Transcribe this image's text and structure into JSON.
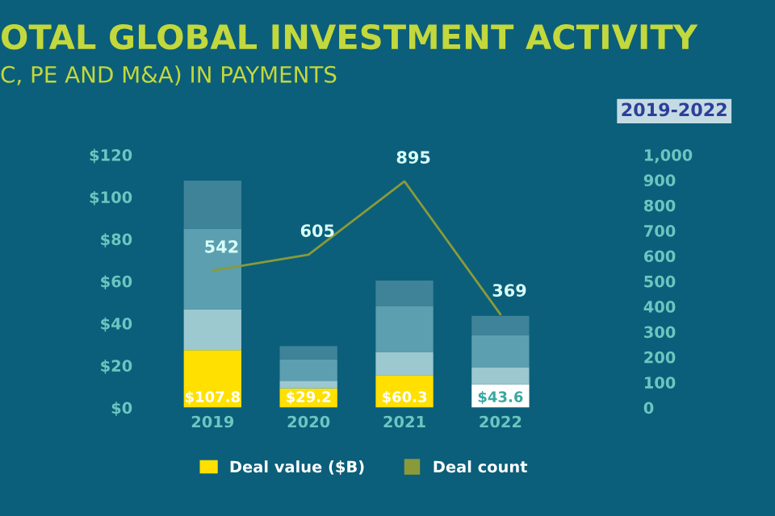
{
  "chart_data": {
    "type": "bar",
    "title": "OTAL GLOBAL INVESTMENT ACTIVITY",
    "subtitle": "C, PE AND M&A) IN PAYMENTS",
    "annotations": [
      "2019-2022"
    ],
    "categories": [
      "2019",
      "2020",
      "2021",
      "2022"
    ],
    "stacked": true,
    "series": [
      {
        "name": "Deal value ($B)",
        "colors": [
          "#ffe000",
          "#ffe000",
          "#ffe000",
          "#ffffff"
        ],
        "values": [
          27.3,
          9.1,
          15.4,
          11.0
        ]
      },
      {
        "color": "#9cc8d0",
        "values": [
          19.4,
          3.7,
          11.0,
          8.0
        ]
      },
      {
        "color": "#5c9fb1",
        "values": [
          38.3,
          10.1,
          21.7,
          15.5
        ]
      },
      {
        "color": "#3f8398",
        "values": [
          22.8,
          6.3,
          12.2,
          9.1
        ]
      },
      {
        "name": "Deal count",
        "type": "line",
        "axis": "y2",
        "color": "#8a9a3a",
        "values": [
          542,
          605,
          895,
          369
        ],
        "data_labels": true
      }
    ],
    "ylim": [
      0,
      120
    ],
    "yticks": [
      {
        "value": 0,
        "label": "$0"
      },
      {
        "value": 20,
        "label": "$20"
      },
      {
        "value": 40,
        "label": "$40"
      },
      {
        "value": 60,
        "label": "$60"
      },
      {
        "value": 80,
        "label": "$80"
      },
      {
        "value": 100,
        "label": "$100"
      },
      {
        "value": 120,
        "label": "$120"
      }
    ],
    "y2lim": [
      0,
      1000
    ],
    "y2ticks": [
      0,
      100,
      200,
      300,
      400,
      500,
      600,
      700,
      800,
      900,
      {
        "value": 1000,
        "label": "1,000"
      }
    ],
    "totals": [
      "$107.8",
      "$29.2",
      "$60.3",
      "$43.6"
    ],
    "legend": "bottom",
    "grid": false
  }
}
